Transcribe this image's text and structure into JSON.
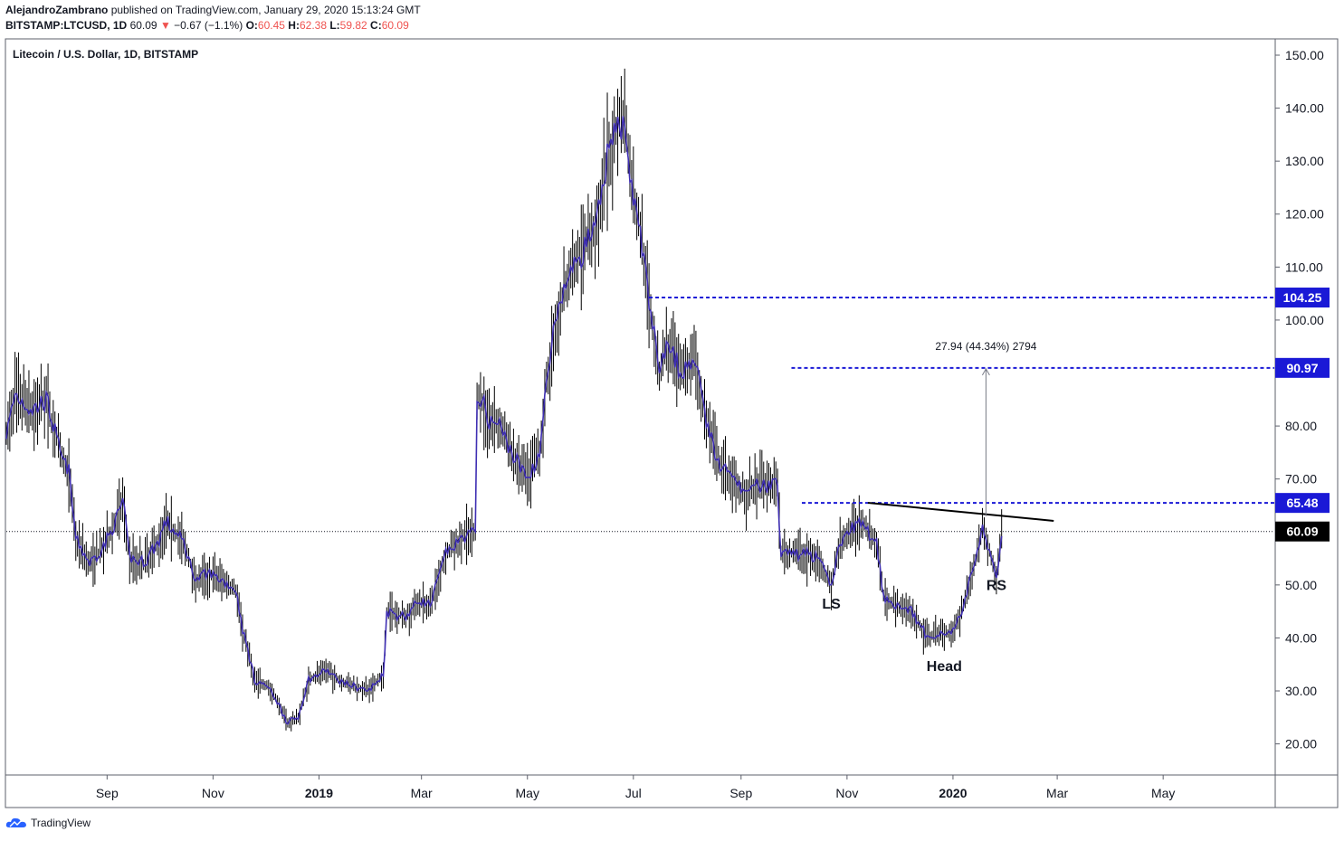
{
  "header": {
    "author": "AlejandroZambrano",
    "published_text": "published on TradingView.com, January 29, 2020 15:13:24 GMT",
    "symbol": "BITSTAMP:LTCUSD, 1D",
    "last": "60.09",
    "change": "−0.67 (−1.1%)",
    "open_label": "O:",
    "open": "60.45",
    "high_label": "H:",
    "high": "62.38",
    "low_label": "L:",
    "low": "59.82",
    "close_label": "C:",
    "close": "60.09"
  },
  "chart_title": "Litecoin / U.S. Dollar, 1D, BITSTAMP",
  "footer": {
    "brand": "TradingView"
  },
  "colors": {
    "candle": "#000000",
    "line": "#3f2fb3",
    "level": "#1a19d6",
    "label_bg": "#1a19d6"
  },
  "chart_data": {
    "type": "line",
    "title": "Litecoin / U.S. Dollar, 1D, BITSTAMP",
    "y_ticks": [
      "150.00",
      "140.00",
      "130.00",
      "120.00",
      "110.00",
      "100.00",
      "90.00",
      "80.00",
      "70.00",
      "60.00",
      "50.00",
      "40.00",
      "30.00",
      "20.00"
    ],
    "y_tick_values": [
      150,
      140,
      130,
      120,
      110,
      100,
      90,
      80,
      70,
      60,
      50,
      40,
      30,
      20
    ],
    "ylim": [
      14.3,
      152.9
    ],
    "x_ticks": [
      {
        "label": "Sep",
        "date": "2018-09-01",
        "bold": false
      },
      {
        "label": "Nov",
        "date": "2018-11-01",
        "bold": false
      },
      {
        "label": "2019",
        "date": "2019-01-01",
        "bold": true
      },
      {
        "label": "Mar",
        "date": "2019-03-01",
        "bold": false
      },
      {
        "label": "May",
        "date": "2019-05-01",
        "bold": false
      },
      {
        "label": "Jul",
        "date": "2019-07-01",
        "bold": false
      },
      {
        "label": "Sep",
        "date": "2019-09-01",
        "bold": false
      },
      {
        "label": "Nov",
        "date": "2019-11-01",
        "bold": false
      },
      {
        "label": "2020",
        "date": "2020-01-01",
        "bold": true
      },
      {
        "label": "Mar",
        "date": "2020-03-01",
        "bold": false
      },
      {
        "label": "May",
        "date": "2020-05-01",
        "bold": false
      }
    ],
    "xlim": [
      "2018-07-05",
      "2020-07-04"
    ],
    "series": [
      {
        "values": [
          [
            "2018-07-05",
            78
          ],
          [
            "2018-07-10",
            86
          ],
          [
            "2018-07-20",
            83
          ],
          [
            "2018-07-28",
            85
          ],
          [
            "2018-08-05",
            75
          ],
          [
            "2018-08-10",
            71
          ],
          [
            "2018-08-14",
            59
          ],
          [
            "2018-08-22",
            54
          ],
          [
            "2018-08-30",
            57
          ],
          [
            "2018-09-06",
            62
          ],
          [
            "2018-09-10",
            66
          ],
          [
            "2018-09-14",
            55
          ],
          [
            "2018-09-22",
            54
          ],
          [
            "2018-09-30",
            58
          ],
          [
            "2018-10-05",
            62
          ],
          [
            "2018-10-15",
            58
          ],
          [
            "2018-10-22",
            51
          ],
          [
            "2018-10-30",
            52
          ],
          [
            "2018-11-06",
            51
          ],
          [
            "2018-11-10",
            50
          ],
          [
            "2018-11-14",
            49
          ],
          [
            "2018-11-18",
            42
          ],
          [
            "2018-11-25",
            32
          ],
          [
            "2018-12-02",
            31
          ],
          [
            "2018-12-08",
            28
          ],
          [
            "2018-12-14",
            24
          ],
          [
            "2018-12-20",
            25
          ],
          [
            "2018-12-26",
            32
          ],
          [
            "2019-01-05",
            34
          ],
          [
            "2019-01-12",
            32
          ],
          [
            "2019-01-20",
            31
          ],
          [
            "2019-01-30",
            30
          ],
          [
            "2019-02-07",
            33
          ],
          [
            "2019-02-09",
            45
          ],
          [
            "2019-02-20",
            44
          ],
          [
            "2019-02-27",
            47
          ],
          [
            "2019-03-06",
            46
          ],
          [
            "2019-03-15",
            56
          ],
          [
            "2019-03-25",
            59
          ],
          [
            "2019-04-01",
            60
          ],
          [
            "2019-04-02",
            86
          ],
          [
            "2019-04-10",
            81
          ],
          [
            "2019-04-15",
            80
          ],
          [
            "2019-04-25",
            73
          ],
          [
            "2019-05-01",
            70
          ],
          [
            "2019-05-08",
            75
          ],
          [
            "2019-05-12",
            88
          ],
          [
            "2019-05-16",
            97
          ],
          [
            "2019-05-25",
            109
          ],
          [
            "2019-06-01",
            113
          ],
          [
            "2019-06-10",
            118
          ],
          [
            "2019-06-16",
            130
          ],
          [
            "2019-06-22",
            137
          ],
          [
            "2019-06-26",
            138
          ],
          [
            "2019-06-30",
            125
          ],
          [
            "2019-07-05",
            117
          ],
          [
            "2019-07-10",
            104
          ],
          [
            "2019-07-16",
            90
          ],
          [
            "2019-07-20",
            95
          ],
          [
            "2019-07-28",
            90
          ],
          [
            "2019-08-05",
            93
          ],
          [
            "2019-08-12",
            81
          ],
          [
            "2019-08-20",
            72
          ],
          [
            "2019-08-28",
            70
          ],
          [
            "2019-09-04",
            67
          ],
          [
            "2019-09-12",
            69
          ],
          [
            "2019-09-22",
            69
          ],
          [
            "2019-09-24",
            56
          ],
          [
            "2019-10-05",
            56
          ],
          [
            "2019-10-15",
            55
          ],
          [
            "2019-10-23",
            50
          ],
          [
            "2019-10-28",
            58
          ],
          [
            "2019-11-05",
            61
          ],
          [
            "2019-11-10",
            62
          ],
          [
            "2019-11-18",
            58
          ],
          [
            "2019-11-22",
            48
          ],
          [
            "2019-11-30",
            46
          ],
          [
            "2019-12-08",
            45
          ],
          [
            "2019-12-17",
            40
          ],
          [
            "2019-12-25",
            41
          ],
          [
            "2020-01-01",
            41
          ],
          [
            "2020-01-06",
            45
          ],
          [
            "2020-01-12",
            52
          ],
          [
            "2020-01-18",
            61
          ],
          [
            "2020-01-23",
            55
          ],
          [
            "2020-01-26",
            51
          ],
          [
            "2020-01-29",
            60
          ]
        ]
      }
    ],
    "last_price": {
      "value": 60.09,
      "label": "60.09"
    },
    "levels": [
      {
        "value": 104.25,
        "label": "104.25",
        "from": "2019-07-10"
      },
      {
        "value": 90.97,
        "label": "90.97",
        "from": "2019-09-30"
      },
      {
        "value": 65.48,
        "label": "65.48",
        "from": "2019-10-06"
      }
    ],
    "trendline": {
      "from": [
        "2019-11-13",
        65.5
      ],
      "to": [
        "2020-02-28",
        62.1
      ]
    },
    "measure": {
      "label": "27.94 (44.34%) 2794",
      "at": "2020-01-20",
      "from": 63.0,
      "to": 90.97
    },
    "annotations": [
      {
        "label": "LS",
        "date": "2019-10-23",
        "value": 45.5
      },
      {
        "label": "Head",
        "date": "2019-12-27",
        "value": 33.8
      },
      {
        "label": "RS",
        "date": "2020-01-26",
        "value": 49.0
      }
    ]
  }
}
